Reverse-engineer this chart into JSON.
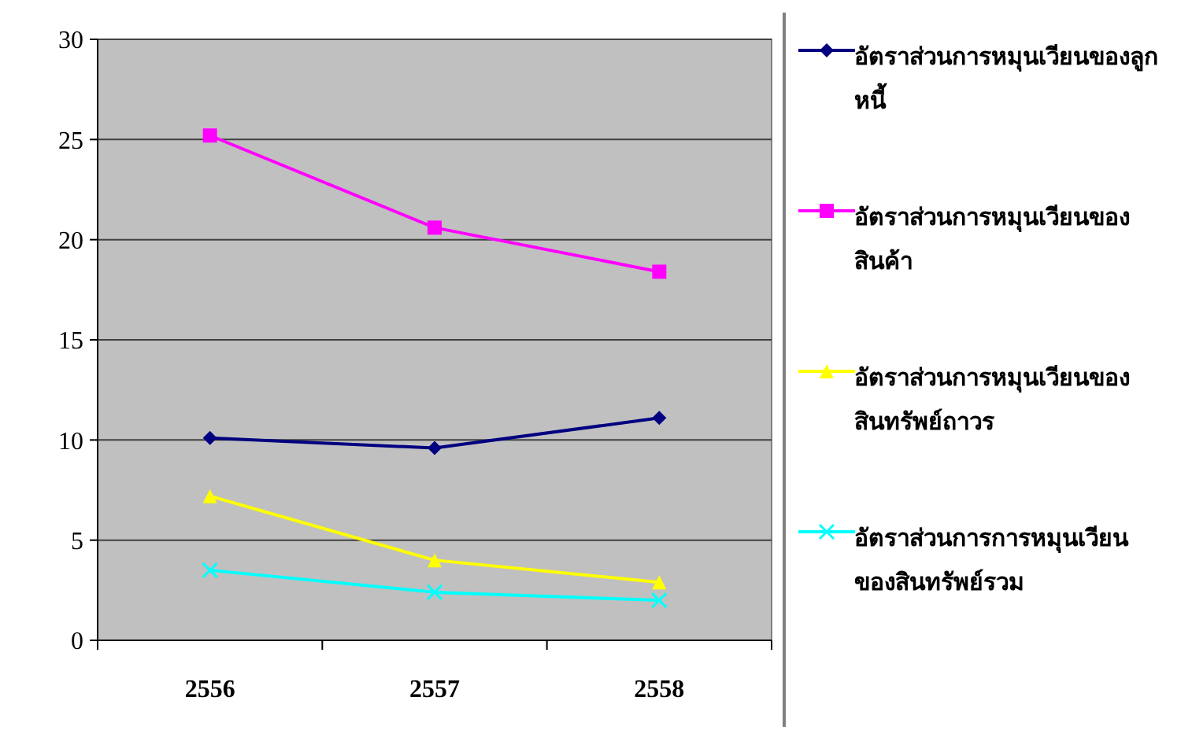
{
  "chart_data": {
    "type": "line",
    "categories": [
      "2556",
      "2557",
      "2558"
    ],
    "ylim": [
      0,
      30
    ],
    "yticks": [
      0,
      5,
      10,
      15,
      20,
      25,
      30
    ],
    "grid": "y",
    "legend": "right",
    "series": [
      {
        "name": "อัตราส่วนการหมุนเวียนของลูกหนี้",
        "color": "#000080",
        "marker": "diamond",
        "values": [
          10.1,
          9.6,
          11.1
        ]
      },
      {
        "name": "อัตราส่วนการหมุนเวียนของสินค้า",
        "color": "#ff00ff",
        "marker": "square",
        "values": [
          25.2,
          20.6,
          18.4
        ]
      },
      {
        "name": "อัตราส่วนการหมุนเวียนของสินทรัพย์ถาวร",
        "color": "#ffff00",
        "marker": "triangle",
        "values": [
          7.2,
          4.0,
          2.9
        ]
      },
      {
        "name": "อัตราส่วนการการหมุนเวียนของสินทรัพย์รวม",
        "color": "#00ffff",
        "marker": "cross",
        "values": [
          3.5,
          2.4,
          2.0
        ]
      }
    ]
  }
}
